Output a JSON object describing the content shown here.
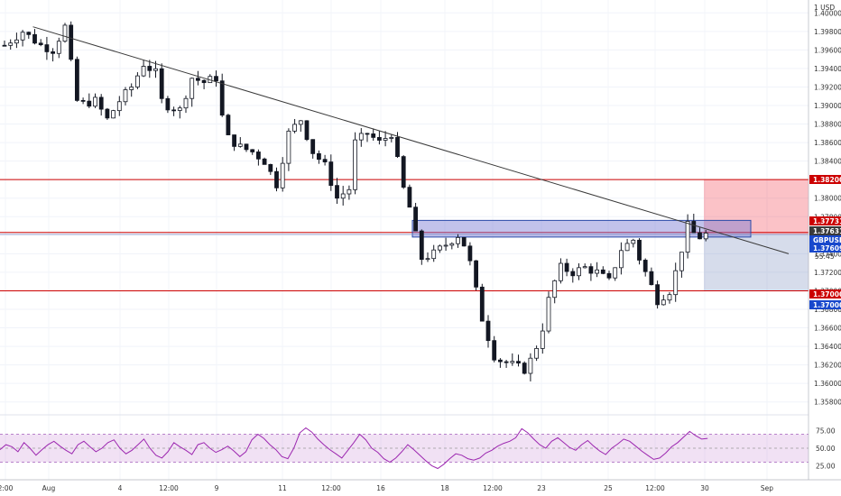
{
  "chart_data": {
    "type": "candlestick",
    "symbol": "GBPUSD",
    "currency_label": "1 USD",
    "countdown": "55:45",
    "x_ticks": [
      "2:00",
      "Aug",
      "4",
      "12:00",
      "9",
      "11",
      "12:00",
      "16",
      "18",
      "12:00",
      "23",
      "25",
      "12:00",
      "30",
      "Sep"
    ],
    "y_ticks": [
      "1.40000",
      "1.39800",
      "1.39600",
      "1.39400",
      "1.39200",
      "1.39000",
      "1.38800",
      "1.38600",
      "1.38400",
      "1.38200",
      "1.38000",
      "1.37800",
      "1.37600",
      "1.37400",
      "1.37200",
      "1.37000",
      "1.36800",
      "1.36600",
      "1.36400",
      "1.36200",
      "1.36000",
      "1.35800"
    ],
    "y_range": [
      1.357,
      1.401
    ],
    "price_path": [
      [
        0,
        1.3965
      ],
      [
        3,
        1.398
      ],
      [
        6,
        1.3965
      ],
      [
        8,
        1.396
      ],
      [
        10,
        1.3985
      ],
      [
        11,
        1.3945
      ],
      [
        12,
        1.3905
      ],
      [
        13,
        1.3902
      ],
      [
        15,
        1.3905
      ],
      [
        17,
        1.3885
      ],
      [
        19,
        1.3905
      ],
      [
        21,
        1.392
      ],
      [
        23,
        1.3945
      ],
      [
        25,
        1.3935
      ],
      [
        26,
        1.3905
      ],
      [
        27,
        1.39
      ],
      [
        29,
        1.3895
      ],
      [
        31,
        1.393
      ],
      [
        33,
        1.3925
      ],
      [
        35,
        1.393
      ],
      [
        36,
        1.3888
      ],
      [
        37,
        1.3865
      ],
      [
        39,
        1.3855
      ],
      [
        41,
        1.385
      ],
      [
        43,
        1.384
      ],
      [
        45,
        1.3815
      ],
      [
        47,
        1.387
      ],
      [
        49,
        1.3885
      ],
      [
        51,
        1.385
      ],
      [
        53,
        1.3835
      ],
      [
        55,
        1.38
      ],
      [
        57,
        1.381
      ],
      [
        58,
        1.386
      ],
      [
        60,
        1.387
      ],
      [
        62,
        1.386
      ],
      [
        64,
        1.387
      ],
      [
        65,
        1.384
      ],
      [
        66,
        1.381
      ],
      [
        67,
        1.379
      ],
      [
        68,
        1.376
      ],
      [
        69,
        1.3735
      ],
      [
        71,
        1.374
      ],
      [
        73,
        1.375
      ],
      [
        75,
        1.376
      ],
      [
        76,
        1.375
      ],
      [
        77,
        1.373
      ],
      [
        78,
        1.37
      ],
      [
        79,
        1.367
      ],
      [
        80,
        1.365
      ],
      [
        81,
        1.363
      ],
      [
        82,
        1.3625
      ],
      [
        84,
        1.362
      ],
      [
        86,
        1.3615
      ],
      [
        87,
        1.3625
      ],
      [
        88,
        1.364
      ],
      [
        89,
        1.366
      ],
      [
        90,
        1.369
      ],
      [
        91,
        1.371
      ],
      [
        92,
        1.3725
      ],
      [
        94,
        1.372
      ],
      [
        96,
        1.3725
      ],
      [
        98,
        1.372
      ],
      [
        100,
        1.371
      ],
      [
        102,
        1.3745
      ],
      [
        104,
        1.3755
      ],
      [
        105,
        1.3735
      ],
      [
        106,
        1.372
      ],
      [
        107,
        1.3705
      ],
      [
        108,
        1.369
      ],
      [
        109,
        1.3695
      ],
      [
        110,
        1.37
      ],
      [
        111,
        1.372
      ],
      [
        112,
        1.3745
      ],
      [
        113,
        1.377
      ],
      [
        114,
        1.3762
      ],
      [
        115,
        1.3758
      ],
      [
        116,
        1.3761
      ]
    ],
    "resistance_levels": [
      1.382,
      1.3763,
      1.37
    ],
    "trendline": {
      "start": [
        5,
        1.3985
      ],
      "end": [
        130,
        1.374
      ]
    },
    "zone": {
      "low": 1.3758,
      "high": 1.3776
    },
    "long_position": {
      "entry": 1.37609,
      "stop": 1.382,
      "target": 1.37
    },
    "price_tags": [
      {
        "label": "1.38200",
        "color": "#cc0000"
      },
      {
        "label": "1.37731",
        "color": "#cc0000"
      },
      {
        "label": "1.37631",
        "color": "#3a3a3a"
      },
      {
        "label": "GBPUSD",
        "color": "#1848cc"
      },
      {
        "label": "1.37609",
        "color": "#1848cc"
      },
      {
        "label": "1.37000",
        "color": "#cc0000"
      },
      {
        "label": "1.37000",
        "color": "#1848cc"
      }
    ],
    "rsi": {
      "y_ticks": [
        "75.00",
        "50.00",
        "25.00"
      ],
      "range": [
        10,
        90
      ],
      "band": [
        30,
        70
      ],
      "mid": 50,
      "values": [
        48,
        55,
        52,
        45,
        58,
        50,
        40,
        48,
        55,
        60,
        53,
        47,
        42,
        55,
        60,
        52,
        45,
        50,
        58,
        62,
        50,
        42,
        47,
        55,
        63,
        50,
        40,
        36,
        45,
        58,
        52,
        47,
        41,
        55,
        58,
        50,
        44,
        48,
        53,
        46,
        38,
        45,
        62,
        70,
        64,
        55,
        48,
        38,
        35,
        50,
        72,
        79,
        73,
        63,
        55,
        48,
        42,
        36,
        47,
        58,
        70,
        62,
        50,
        44,
        35,
        30,
        36,
        45,
        55,
        48,
        40,
        32,
        25,
        21,
        27,
        35,
        42,
        40,
        35,
        33,
        36,
        43,
        47,
        53,
        57,
        60,
        65,
        78,
        72,
        63,
        55,
        50,
        60,
        65,
        58,
        51,
        47,
        55,
        61,
        53,
        46,
        41,
        50,
        56,
        63,
        60,
        53,
        46,
        40,
        34,
        36,
        43,
        52,
        58,
        66,
        74,
        68,
        63,
        64
      ]
    }
  }
}
